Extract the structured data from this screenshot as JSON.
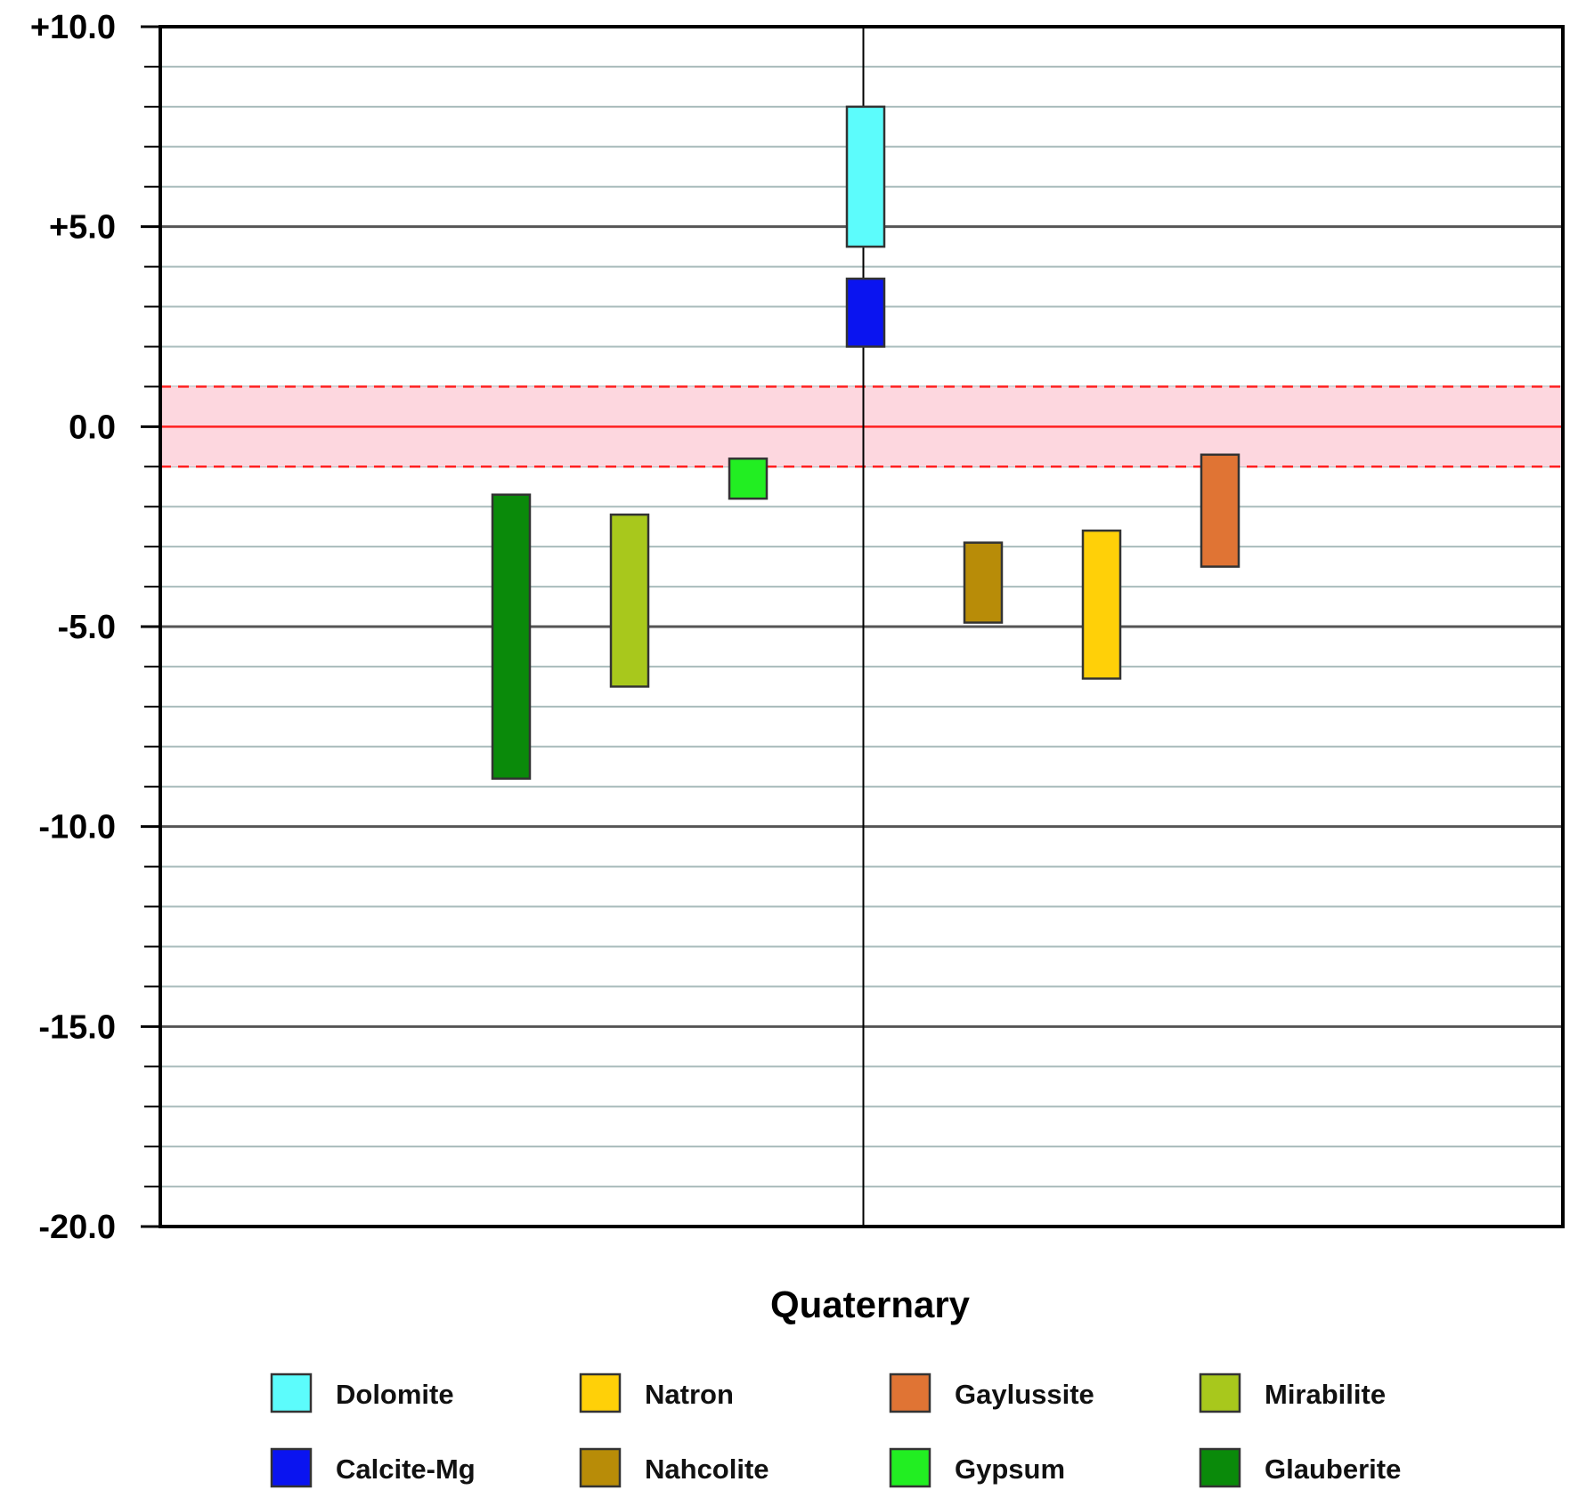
{
  "chart_data": {
    "type": "bar",
    "xlabel": "Quaternary",
    "ylim": [
      -20,
      10
    ],
    "y_major_ticks": [
      10,
      5,
      0,
      -5,
      -10,
      -15,
      -20
    ],
    "y_tick_labels": [
      "+10.0",
      "+5.0",
      "0.0",
      "-5.0",
      "-10.0",
      "-15.0",
      "-20.0"
    ],
    "y_minor_step": 1,
    "grid": true,
    "equilibrium_band": {
      "center": 0,
      "low": -1,
      "high": 1,
      "color": "#fdd7df",
      "line_color": "#ff2020"
    },
    "legend_placement": "bottom",
    "series": [
      {
        "name": "Glauberite",
        "low": -8.8,
        "high": -1.7,
        "color": "#0a8a0a"
      },
      {
        "name": "Mirabilite",
        "low": -6.5,
        "high": -2.2,
        "color": "#a8c81c"
      },
      {
        "name": "Gypsum",
        "low": -1.8,
        "high": -0.8,
        "color": "#22ee22"
      },
      {
        "name": "Dolomite",
        "low": 4.5,
        "high": 8.0,
        "color": "#5cfcfc"
      },
      {
        "name": "Calcite-Mg",
        "low": 2.0,
        "high": 3.7,
        "color": "#0a14f0"
      },
      {
        "name": "Nahcolite",
        "low": -4.9,
        "high": -2.9,
        "color": "#b88c08"
      },
      {
        "name": "Natron",
        "low": -6.3,
        "high": -2.6,
        "color": "#ffd008"
      },
      {
        "name": "Gaylussite",
        "low": -3.5,
        "high": -0.7,
        "color": "#e07434"
      }
    ],
    "legend": [
      [
        "Dolomite",
        "Natron",
        "Gaylussite",
        "Mirabilite"
      ],
      [
        "Calcite-Mg",
        "Nahcolite",
        "Gypsum",
        "Glauberite"
      ]
    ]
  }
}
